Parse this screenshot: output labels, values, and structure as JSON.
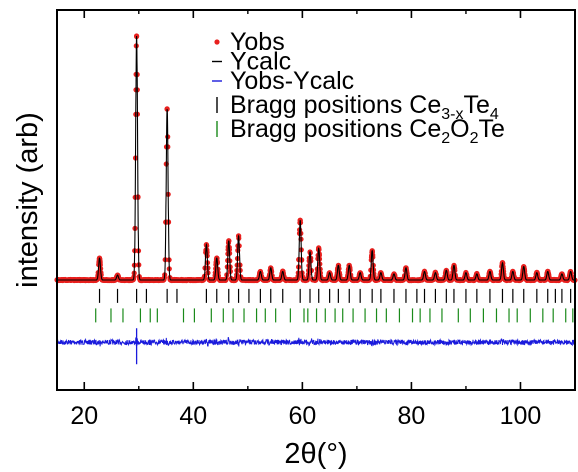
{
  "chart_data": {
    "type": "line",
    "xlabel": "2θ(°)",
    "ylabel": "intensity (arb)",
    "xlim": [
      15,
      110
    ],
    "x_ticks": [
      20,
      40,
      60,
      80,
      100
    ],
    "x_tick_labels": [
      "20",
      "40",
      "60",
      "80",
      "100"
    ],
    "y_ticks_shown": false,
    "grid": false,
    "legend_position": "top-right",
    "background_level": 0.045,
    "difference_offset": -0.21,
    "bragg_row_offsets": [
      -0.02,
      -0.1
    ],
    "legend": [
      {
        "id": "yobs",
        "text": "Yobs",
        "marker": "dot",
        "color": "#e8201e"
      },
      {
        "id": "ycalc",
        "text": "Ycalc",
        "marker": "line",
        "color": "#000000"
      },
      {
        "id": "diff",
        "text": "Yobs-Ycalc",
        "marker": "line",
        "color": "#1a1adc"
      },
      {
        "id": "bragg1",
        "text": "Bragg positions Ce",
        "sub1": "3-x",
        "text2": "Te",
        "sub2": "4",
        "text3": "",
        "marker": "tick",
        "color": "#000000"
      },
      {
        "id": "bragg2",
        "text": "Bragg positions Ce",
        "sub1": "2",
        "text2": "O",
        "sub2": "2",
        "text3": "Te",
        "marker": "tick",
        "color": "#1a8a1a"
      }
    ],
    "series": [
      {
        "name": "Yobs",
        "kind": "observed-points",
        "color": "#e8201e",
        "peaks": [
          {
            "x": 22.8,
            "y": 0.09
          },
          {
            "x": 26.1,
            "y": 0.02
          },
          {
            "x": 29.6,
            "y": 1.0
          },
          {
            "x": 35.2,
            "y": 0.7
          },
          {
            "x": 42.4,
            "y": 0.145
          },
          {
            "x": 44.3,
            "y": 0.09
          },
          {
            "x": 46.5,
            "y": 0.16
          },
          {
            "x": 48.3,
            "y": 0.18
          },
          {
            "x": 52.3,
            "y": 0.035
          },
          {
            "x": 54.2,
            "y": 0.05
          },
          {
            "x": 56.4,
            "y": 0.035
          },
          {
            "x": 59.6,
            "y": 0.245
          },
          {
            "x": 61.4,
            "y": 0.115
          },
          {
            "x": 63.0,
            "y": 0.13
          },
          {
            "x": 65.0,
            "y": 0.03
          },
          {
            "x": 66.6,
            "y": 0.06
          },
          {
            "x": 68.6,
            "y": 0.06
          },
          {
            "x": 70.6,
            "y": 0.03
          },
          {
            "x": 72.8,
            "y": 0.12
          },
          {
            "x": 74.4,
            "y": 0.03
          },
          {
            "x": 76.8,
            "y": 0.025
          },
          {
            "x": 79.0,
            "y": 0.05
          },
          {
            "x": 82.4,
            "y": 0.035
          },
          {
            "x": 84.4,
            "y": 0.03
          },
          {
            "x": 86.4,
            "y": 0.04
          },
          {
            "x": 87.8,
            "y": 0.06
          },
          {
            "x": 90.0,
            "y": 0.03
          },
          {
            "x": 92.0,
            "y": 0.025
          },
          {
            "x": 94.4,
            "y": 0.035
          },
          {
            "x": 96.7,
            "y": 0.07
          },
          {
            "x": 98.6,
            "y": 0.035
          },
          {
            "x": 100.6,
            "y": 0.055
          },
          {
            "x": 103.0,
            "y": 0.03
          },
          {
            "x": 105.0,
            "y": 0.035
          },
          {
            "x": 107.6,
            "y": 0.025
          },
          {
            "x": 109.2,
            "y": 0.035
          }
        ]
      },
      {
        "name": "Ycalc",
        "kind": "calculated-line",
        "color": "#000000"
      },
      {
        "name": "Yobs-Ycalc",
        "kind": "difference-line",
        "color": "#1a1adc"
      }
    ],
    "bragg_positions": [
      {
        "name": "Ce3-xTe4",
        "color": "#000000",
        "x": [
          22.8,
          26.1,
          29.6,
          31.4,
          35.2,
          37.0,
          42.4,
          44.3,
          46.5,
          48.3,
          50.2,
          52.3,
          54.2,
          56.4,
          59.6,
          61.4,
          63.0,
          65.0,
          66.6,
          68.6,
          70.6,
          72.8,
          74.4,
          76.8,
          79.0,
          81.0,
          82.4,
          84.4,
          86.4,
          87.8,
          90.0,
          92.0,
          94.4,
          96.7,
          98.6,
          100.6,
          103.0,
          105.0,
          106.4,
          107.6,
          109.2
        ]
      },
      {
        "name": "Ce2O2Te",
        "color": "#1a8a1a",
        "x": [
          22.1,
          24.9,
          27.1,
          30.3,
          32.1,
          33.4,
          38.2,
          40.2,
          43.3,
          45.5,
          47.3,
          49.3,
          51.6,
          53.2,
          55.1,
          57.8,
          60.3,
          61.0,
          62.6,
          64.2,
          66.0,
          67.4,
          69.3,
          71.5,
          73.6,
          75.4,
          77.8,
          80.2,
          81.6,
          83.4,
          85.6,
          88.6,
          90.8,
          93.2,
          95.6,
          97.9,
          99.4,
          101.8,
          104.1,
          106.0,
          108.3,
          109.6
        ]
      }
    ]
  }
}
